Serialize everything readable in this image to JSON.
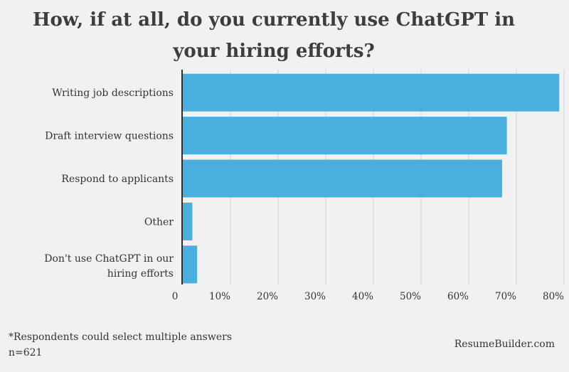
{
  "header": {
    "title_line1": "How, if at all, do you currently use ChatGPT in",
    "title_line2": "your hiring efforts?"
  },
  "chart_data": {
    "type": "bar",
    "orientation": "horizontal",
    "title": "How, if at all, do you currently use ChatGPT in your hiring efforts?",
    "categories": [
      "Writing job descriptions",
      "Draft interview questions",
      "Respond to applicants",
      "Other",
      "Don't use ChatGPT in our hiring efforts"
    ],
    "values": [
      79,
      68,
      67,
      2,
      3
    ],
    "xlim": [
      0,
      80
    ],
    "x_ticks": [
      "0",
      "10%",
      "20%",
      "30%",
      "40%",
      "50%",
      "60%",
      "70%",
      "80%"
    ],
    "grid": true,
    "bar_color": "#4aafdf"
  },
  "footer": {
    "note": "*Respondents could select multiple answers",
    "sample": "n=621",
    "brand": "ResumeBuilder.com"
  }
}
